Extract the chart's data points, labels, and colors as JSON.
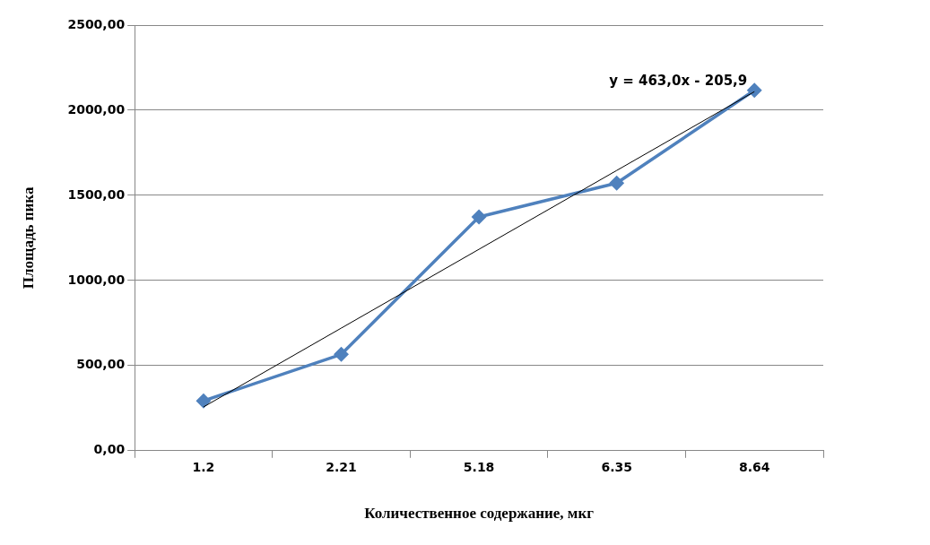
{
  "chart_data": {
    "type": "line",
    "xlabel": "Количественное содержание, мкг",
    "ylabel": "Площадь пика",
    "categories": [
      "1.2",
      "2.21",
      "5.18",
      "6.35",
      "8.64"
    ],
    "series": [
      {
        "color": "#4f81bd",
        "values": [
          293,
          566,
          1373,
          1572,
          2117
        ],
        "marker": "diamond"
      },
      {
        "color": "#000000",
        "values": [
          257.1,
          720.1,
          1183.1,
          1646.1,
          2109.1
        ],
        "marker": "none"
      }
    ],
    "ylim": [
      0,
      2500
    ],
    "yticks": [
      {
        "value": 0,
        "label": "0,00"
      },
      {
        "value": 500,
        "label": "500,00"
      },
      {
        "value": 1000,
        "label": "1000,00"
      },
      {
        "value": 1500,
        "label": "1500,00"
      },
      {
        "value": 2000,
        "label": "2000,00"
      },
      {
        "value": 2500,
        "label": "2500,00"
      }
    ],
    "grid": "y",
    "legend": false,
    "annotations": [
      {
        "text": "y = 463,0x - 205,9",
        "x": "8.64",
        "y": 2109.1
      }
    ]
  }
}
